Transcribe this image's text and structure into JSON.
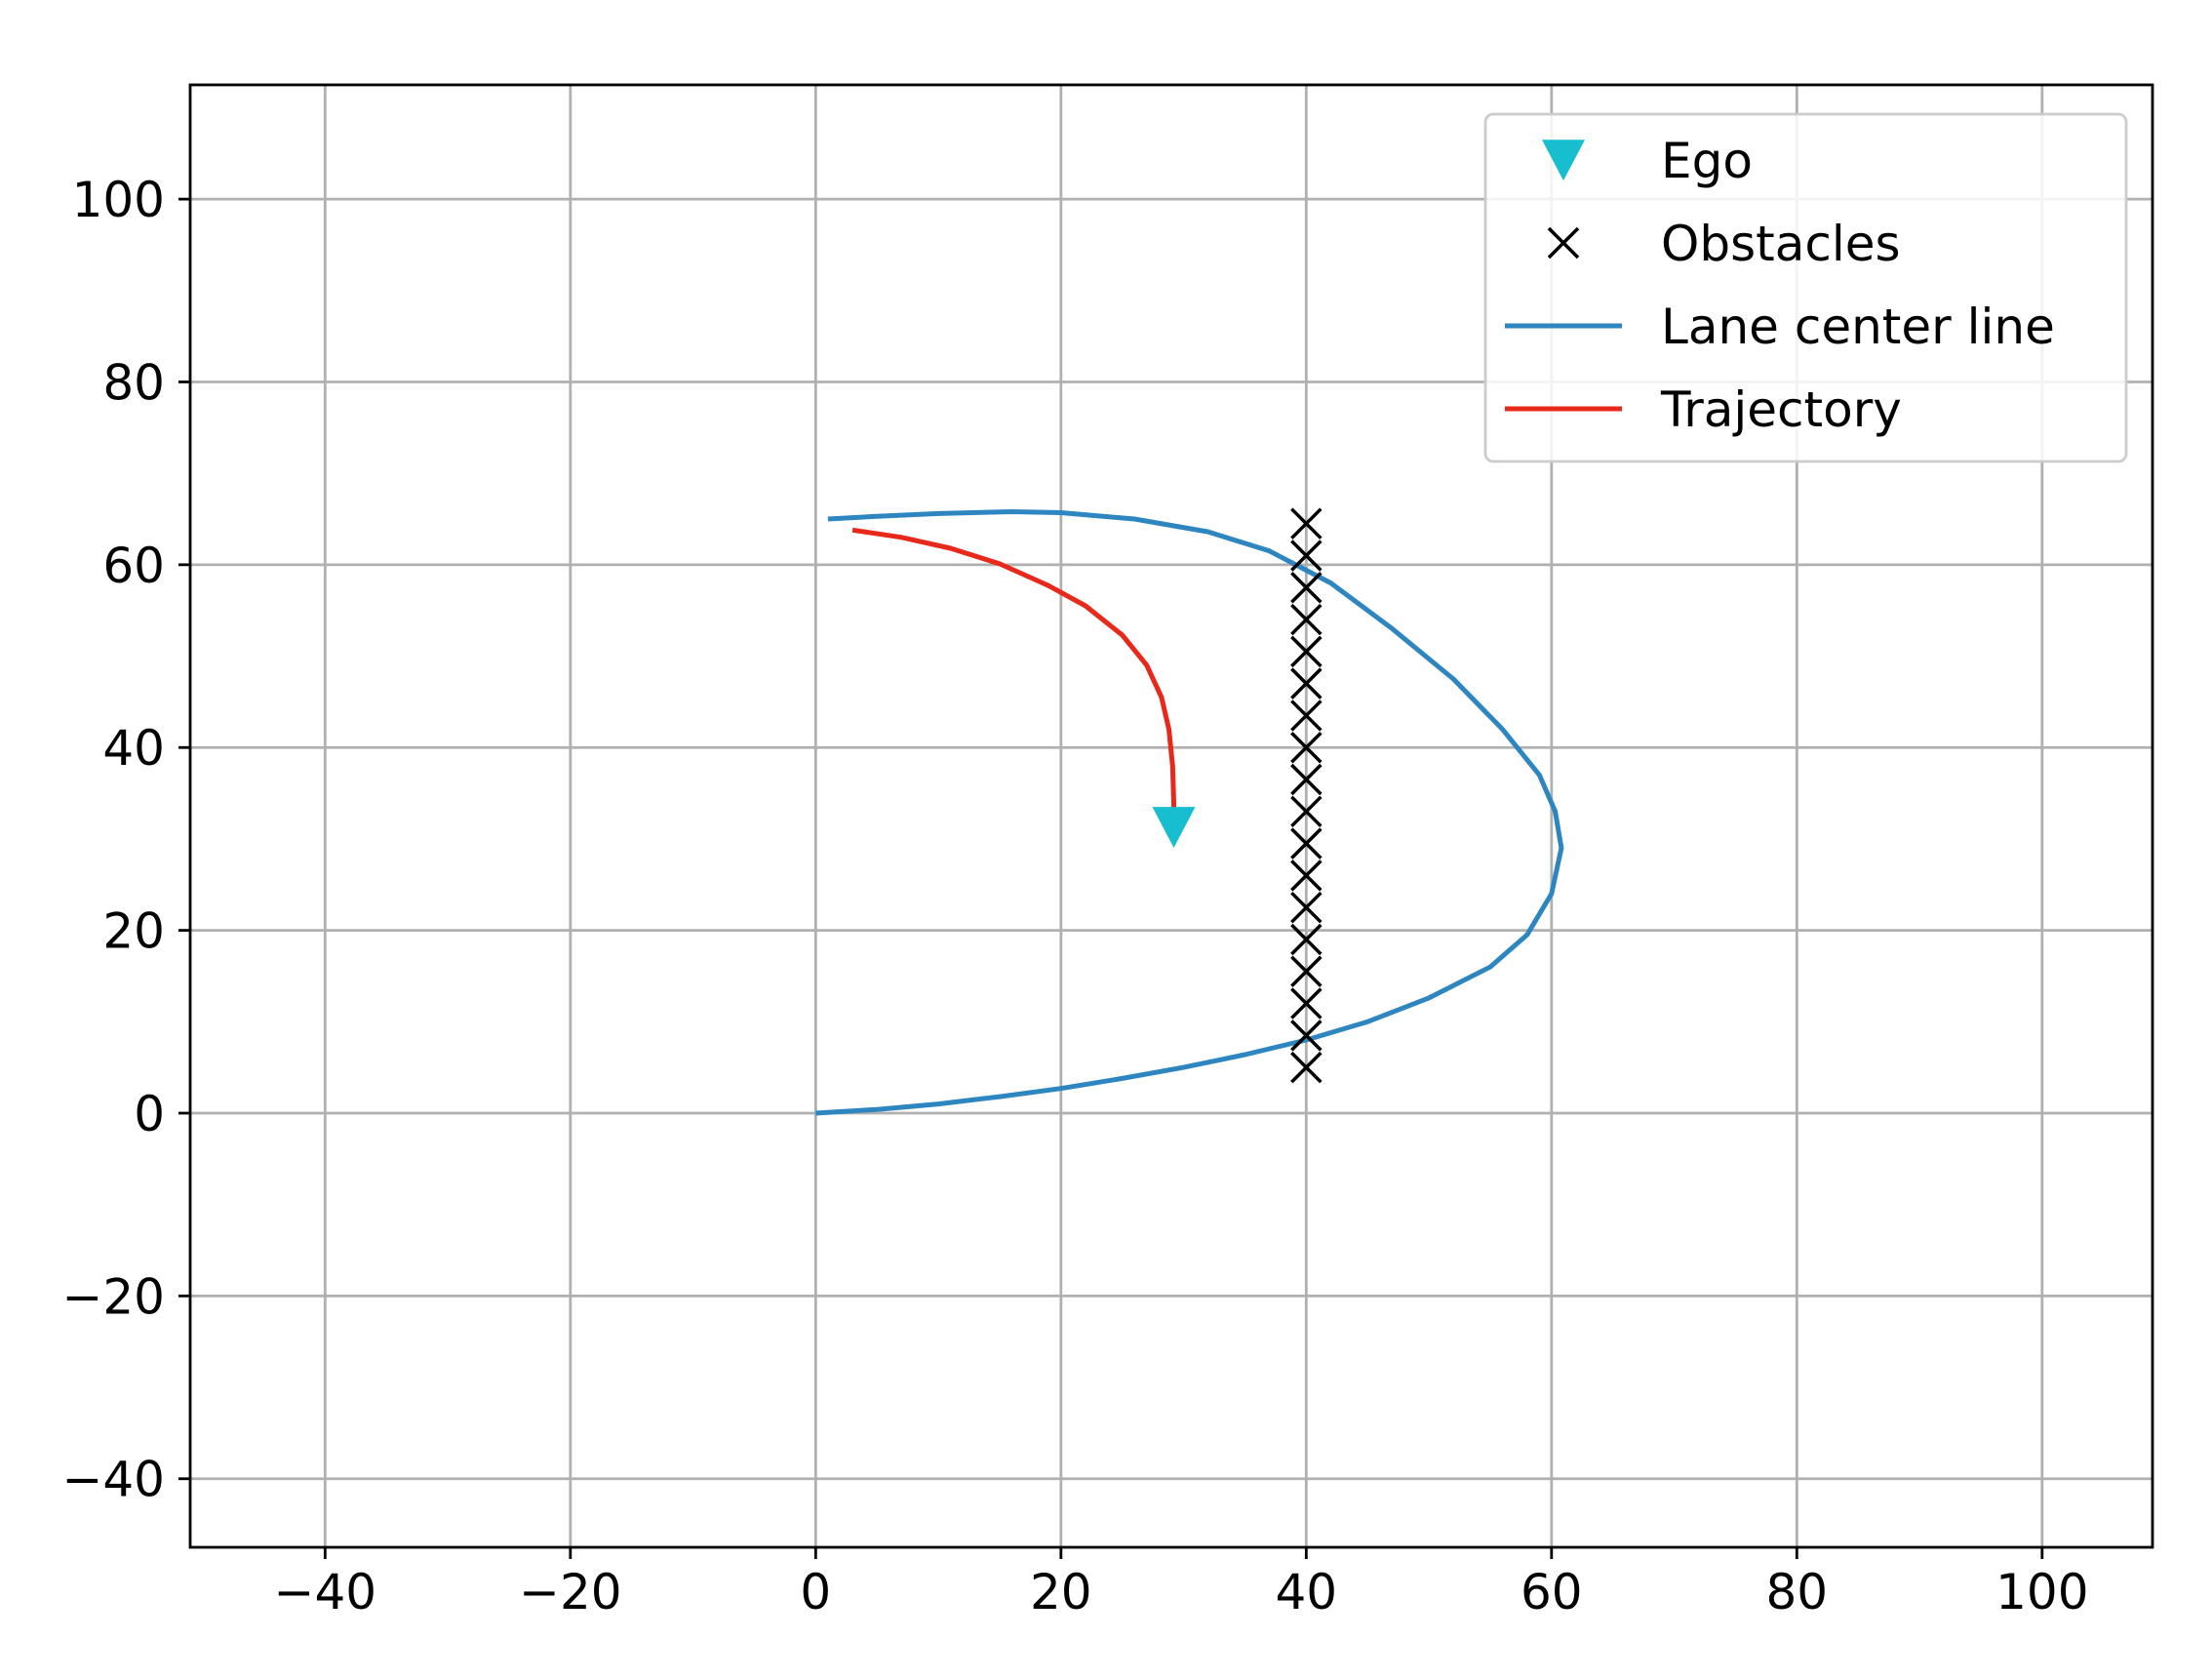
{
  "chart_data": {
    "type": "scatter",
    "title": "",
    "xlabel": "",
    "ylabel": "",
    "xlim": [
      -51,
      109
    ],
    "ylim": [
      -47.5,
      112.5
    ],
    "x_ticks": [
      -40,
      -20,
      0,
      20,
      40,
      60,
      80,
      100
    ],
    "y_ticks": [
      -40,
      -20,
      0,
      20,
      40,
      60,
      80,
      100
    ],
    "x_tick_labels": [
      "−40",
      "−20",
      "0",
      "20",
      "40",
      "60",
      "80",
      "100"
    ],
    "y_tick_labels": [
      "−40",
      "−20",
      "0",
      "20",
      "40",
      "60",
      "80",
      "100"
    ],
    "grid": true,
    "legend_position": "top-right",
    "colors": {
      "ego": "#17becf",
      "obstacles": "#000000",
      "lane": "#2e86c1",
      "trajectory": "#e8281a",
      "grid": "#b0b0b0"
    },
    "series": [
      {
        "name": "Ego",
        "kind": "marker",
        "marker": "triangle-down",
        "points": [
          [
            29.2,
            31.5
          ]
        ]
      },
      {
        "name": "Obstacles",
        "kind": "marker",
        "marker": "x",
        "points": [
          [
            40,
            5
          ],
          [
            40,
            8.5
          ],
          [
            40,
            12
          ],
          [
            40,
            15.5
          ],
          [
            40,
            19
          ],
          [
            40,
            22.5
          ],
          [
            40,
            26
          ],
          [
            40,
            29.5
          ],
          [
            40,
            33
          ],
          [
            40,
            36.5
          ],
          [
            40,
            40
          ],
          [
            40,
            43.5
          ],
          [
            40,
            47
          ],
          [
            40,
            50.5
          ],
          [
            40,
            54
          ],
          [
            40,
            57.5
          ],
          [
            40,
            61
          ],
          [
            40,
            64.5
          ]
        ]
      },
      {
        "name": "Lane center line",
        "kind": "line",
        "points": [
          [
            0,
            0
          ],
          [
            5,
            0.4
          ],
          [
            10,
            1
          ],
          [
            15,
            1.8
          ],
          [
            20,
            2.7
          ],
          [
            25,
            3.8
          ],
          [
            30,
            5
          ],
          [
            35,
            6.4
          ],
          [
            40,
            8
          ],
          [
            45,
            10
          ],
          [
            50,
            12.6
          ],
          [
            55,
            16
          ],
          [
            58,
            19.5
          ],
          [
            60,
            24
          ],
          [
            60.8,
            29
          ],
          [
            60.3,
            33
          ],
          [
            59,
            37
          ],
          [
            56,
            42
          ],
          [
            52,
            47.5
          ],
          [
            47,
            53
          ],
          [
            42,
            58
          ],
          [
            37,
            61.5
          ],
          [
            32,
            63.6
          ],
          [
            26,
            65
          ],
          [
            20,
            65.7
          ],
          [
            16,
            65.8
          ],
          [
            10,
            65.6
          ],
          [
            5,
            65.3
          ],
          [
            1,
            65
          ]
        ]
      },
      {
        "name": "Trajectory",
        "kind": "line",
        "points": [
          [
            3,
            63.8
          ],
          [
            7,
            63
          ],
          [
            11,
            61.8
          ],
          [
            15,
            60.1
          ],
          [
            19,
            57.7
          ],
          [
            22,
            55.5
          ],
          [
            25,
            52.3
          ],
          [
            27,
            49
          ],
          [
            28.2,
            45.5
          ],
          [
            28.8,
            42
          ],
          [
            29.1,
            38
          ],
          [
            29.2,
            34
          ],
          [
            29.2,
            32
          ]
        ]
      }
    ]
  }
}
